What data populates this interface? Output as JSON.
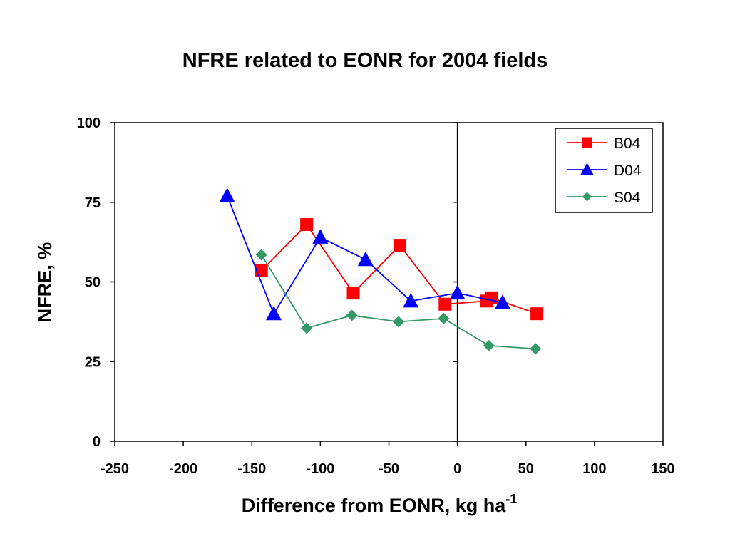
{
  "chart_data": {
    "type": "scatter",
    "title": "NFRE related to EONR for 2004 fields",
    "xlabel": "Difference from EONR, kg ha",
    "xlabel_superscript": "-1",
    "ylabel": "NFRE, %",
    "xlim": [
      -250,
      150
    ],
    "ylim": [
      0,
      100
    ],
    "x_ticks": [
      -250,
      -200,
      -150,
      -100,
      -50,
      0,
      50,
      100,
      150
    ],
    "y_ticks": [
      0,
      25,
      50,
      75,
      100
    ],
    "grid": false,
    "legend_position": "top-right",
    "series": [
      {
        "name": "B04",
        "color": "#ff0000",
        "marker": "square",
        "points": [
          {
            "x": -143,
            "y": 53.5
          },
          {
            "x": -110,
            "y": 68
          },
          {
            "x": -76,
            "y": 46.5
          },
          {
            "x": -42,
            "y": 61.5
          },
          {
            "x": -9,
            "y": 43
          },
          {
            "x": 21,
            "y": 44
          },
          {
            "x": 25,
            "y": 45
          },
          {
            "x": 58,
            "y": 40
          }
        ]
      },
      {
        "name": "D04",
        "color": "#0000ff",
        "marker": "triangle",
        "points": [
          {
            "x": -168,
            "y": 77
          },
          {
            "x": -134,
            "y": 40
          },
          {
            "x": -100,
            "y": 64
          },
          {
            "x": -67,
            "y": 57
          },
          {
            "x": -34,
            "y": 44
          },
          {
            "x": 0,
            "y": 46.5
          },
          {
            "x": 33,
            "y": 43.5
          }
        ]
      },
      {
        "name": "S04",
        "color": "#339966",
        "marker": "diamond",
        "points": [
          {
            "x": -143,
            "y": 58.5
          },
          {
            "x": -110,
            "y": 35.5
          },
          {
            "x": -77,
            "y": 39.5
          },
          {
            "x": -43,
            "y": 37.5
          },
          {
            "x": -10,
            "y": 38.5
          },
          {
            "x": 23,
            "y": 30
          },
          {
            "x": 57,
            "y": 29
          }
        ]
      }
    ]
  }
}
